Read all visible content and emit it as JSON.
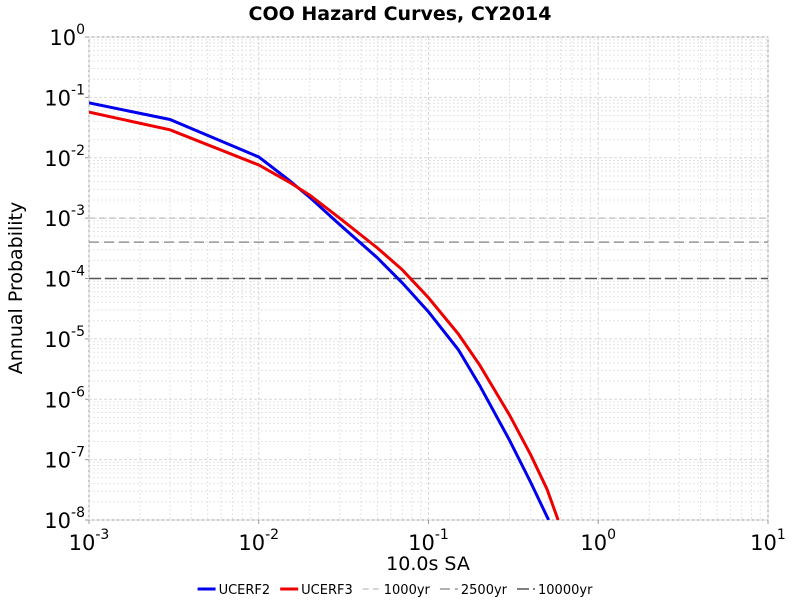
{
  "chart_data": {
    "type": "line",
    "title": "COO Hazard Curves, CY2014",
    "x_label": "10.0s SA",
    "y_label": "Annual Probability",
    "xscale": "log",
    "yscale": "log",
    "grid": true,
    "minor_grid": true,
    "legend": "bottom",
    "xlim": [
      0.001,
      10
    ],
    "ylim": [
      1e-08,
      1
    ],
    "xticks": [
      {
        "value": 0.001,
        "label": "10",
        "sup": "-3"
      },
      {
        "value": 0.01,
        "label": "10",
        "sup": "-2"
      },
      {
        "value": 0.1,
        "label": "10",
        "sup": "-1"
      },
      {
        "value": 1,
        "label": "10",
        "sup": "0"
      },
      {
        "value": 10,
        "label": "10",
        "sup": "1"
      }
    ],
    "yticks": [
      {
        "value": 1e-08,
        "label": "10",
        "sup": "-8"
      },
      {
        "value": 1e-07,
        "label": "10",
        "sup": "-7"
      },
      {
        "value": 1e-06,
        "label": "10",
        "sup": "-6"
      },
      {
        "value": 1e-05,
        "label": "10",
        "sup": "-5"
      },
      {
        "value": 0.0001,
        "label": "10",
        "sup": "-4"
      },
      {
        "value": 0.001,
        "label": "10",
        "sup": "-3"
      },
      {
        "value": 0.01,
        "label": "10",
        "sup": "-2"
      },
      {
        "value": 0.1,
        "label": "10",
        "sup": "-1"
      },
      {
        "value": 1,
        "label": "10",
        "sup": "0"
      }
    ],
    "series": [
      {
        "name": "UCERF2",
        "color": "#0000ee",
        "x": [
          0.001,
          0.003,
          0.01,
          0.015,
          0.02,
          0.03,
          0.05,
          0.07,
          0.1,
          0.15,
          0.2,
          0.3,
          0.4,
          0.51
        ],
        "values": [
          0.081,
          0.043,
          0.0103,
          0.0043,
          0.0022,
          0.00078,
          0.00022,
          8.5e-05,
          2.8e-05,
          6.6e-06,
          1.7e-06,
          2.1e-07,
          4.2e-08,
          1e-08
        ]
      },
      {
        "name": "UCERF3",
        "color": "#ee0000",
        "x": [
          0.001,
          0.003,
          0.01,
          0.015,
          0.02,
          0.03,
          0.05,
          0.07,
          0.1,
          0.15,
          0.2,
          0.3,
          0.4,
          0.5,
          0.58
        ],
        "values": [
          0.057,
          0.029,
          0.0076,
          0.004,
          0.0024,
          0.001,
          0.00032,
          0.00014,
          4.8e-05,
          1.2e-05,
          3.7e-06,
          5.5e-07,
          1.2e-07,
          3.2e-08,
          1e-08
        ]
      }
    ],
    "reference_lines": [
      {
        "name": "1000yr",
        "color": "#c8c8c8",
        "value": 0.001
      },
      {
        "name": "2500yr",
        "color": "#969696",
        "value": 0.0004
      },
      {
        "name": "10000yr",
        "color": "#555555",
        "value": 0.0001
      }
    ]
  }
}
